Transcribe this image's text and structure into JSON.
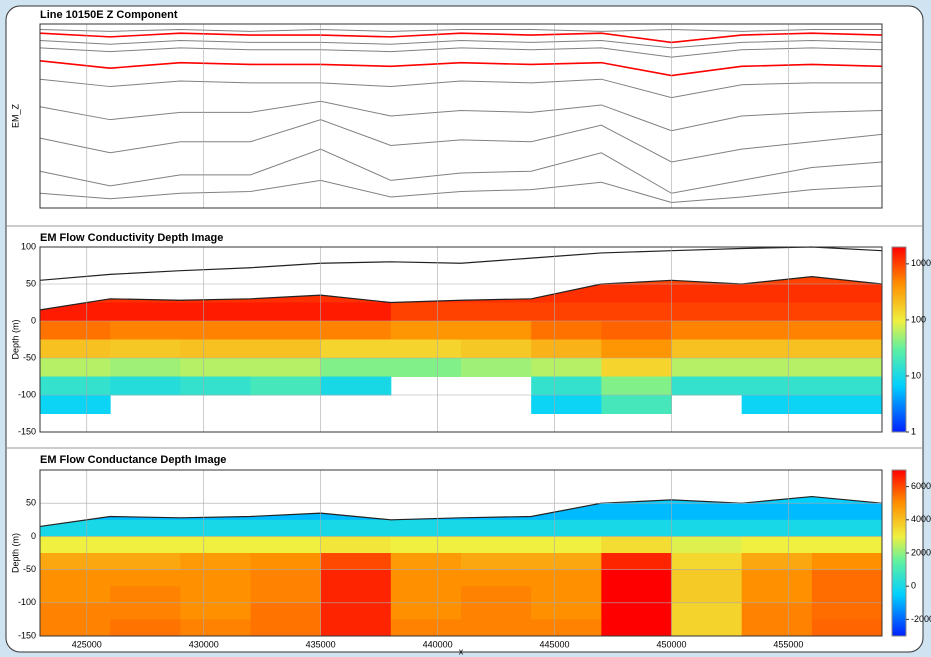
{
  "chart_data": [
    {
      "type": "line",
      "title": "Line 10150E   Z Component",
      "ylabel": "EM_Z",
      "x": [
        423000,
        426000,
        429000,
        432000,
        435000,
        438000,
        441000,
        444000,
        447000,
        450000,
        453000,
        456000,
        459000
      ],
      "xlim": [
        423000,
        459000
      ],
      "xticks": [
        425000,
        430000,
        435000,
        440000,
        445000,
        450000,
        455000
      ],
      "ylim": [
        0,
        100
      ],
      "grid": true,
      "series": [
        {
          "color": "#808080",
          "values": [
            97,
            96,
            97,
            96,
            97,
            96,
            97,
            97,
            96,
            97,
            96,
            97,
            97
          ]
        },
        {
          "color": "#ff0000",
          "values": [
            95,
            93,
            95,
            94,
            94,
            93,
            95,
            94,
            95,
            90,
            94,
            95,
            94
          ]
        },
        {
          "color": "#808080",
          "values": [
            91,
            89,
            91,
            90,
            90,
            89,
            91,
            90,
            91,
            87,
            90,
            91,
            90
          ]
        },
        {
          "color": "#808080",
          "values": [
            87,
            85,
            87,
            86,
            86,
            85,
            87,
            86,
            87,
            82,
            86,
            87,
            86
          ]
        },
        {
          "color": "#ff0000",
          "values": [
            80,
            76,
            79,
            78,
            78,
            77,
            79,
            78,
            79,
            72,
            77,
            78,
            77
          ]
        },
        {
          "color": "#808080",
          "values": [
            70,
            66,
            69,
            68,
            68,
            66,
            69,
            68,
            70,
            60,
            67,
            68,
            68
          ]
        },
        {
          "color": "#808080",
          "values": [
            55,
            48,
            52,
            52,
            58,
            50,
            53,
            52,
            56,
            42,
            50,
            52,
            53
          ]
        },
        {
          "color": "#808080",
          "values": [
            38,
            30,
            36,
            36,
            48,
            34,
            37,
            36,
            45,
            25,
            32,
            36,
            40
          ]
        },
        {
          "color": "#808080",
          "values": [
            20,
            12,
            18,
            18,
            32,
            15,
            19,
            20,
            30,
            8,
            15,
            22,
            25
          ]
        },
        {
          "color": "#808080",
          "values": [
            8,
            5,
            8,
            9,
            15,
            6,
            9,
            10,
            14,
            3,
            6,
            10,
            12
          ]
        }
      ]
    },
    {
      "type": "heatmap",
      "title": "EM Flow Conductivity Depth Image",
      "ylabel": "Depth (m)",
      "xbins": [
        423000,
        426000,
        429000,
        432000,
        435000,
        438000,
        441000,
        444000,
        447000,
        450000,
        453000,
        456000,
        459000
      ],
      "ybins": [
        75,
        50,
        25,
        0,
        -25,
        -50,
        -75,
        -100,
        -125,
        -150
      ],
      "xlim": [
        423000,
        459000
      ],
      "xticks": [
        425000,
        430000,
        435000,
        440000,
        445000,
        450000,
        455000
      ],
      "ylim": [
        -150,
        100
      ],
      "yticks": [
        -150,
        -100,
        -50,
        0,
        50,
        100
      ],
      "grid": true,
      "surface": [
        15,
        30,
        28,
        30,
        35,
        25,
        28,
        30,
        50,
        55,
        50,
        60,
        50
      ],
      "flight_line": [
        55,
        63,
        68,
        72,
        78,
        80,
        78,
        85,
        92,
        95,
        98,
        100,
        95
      ],
      "values": [
        [
          null,
          null,
          null,
          null,
          null,
          null,
          null,
          null,
          1000,
          1000,
          1000,
          1000
        ],
        [
          1200,
          1200,
          1200,
          1200,
          1200,
          1200,
          1200,
          1200,
          1200,
          1200,
          1200,
          1200
        ],
        [
          1500,
          1500,
          1500,
          1500,
          1500,
          1000,
          1000,
          1000,
          1000,
          1000,
          1000,
          1000
        ],
        [
          600,
          500,
          500,
          500,
          500,
          400,
          400,
          600,
          700,
          500,
          500,
          500
        ],
        [
          200,
          180,
          200,
          200,
          150,
          150,
          180,
          250,
          400,
          200,
          200,
          200
        ],
        [
          60,
          50,
          60,
          60,
          40,
          40,
          50,
          60,
          150,
          60,
          60,
          60
        ],
        [
          15,
          12,
          15,
          20,
          10,
          null,
          null,
          15,
          40,
          15,
          15,
          15
        ],
        [
          8,
          null,
          null,
          null,
          null,
          null,
          null,
          8,
          20,
          null,
          8,
          8
        ],
        [
          null,
          null,
          null,
          null,
          null,
          null,
          null,
          null,
          null,
          null,
          null,
          null
        ]
      ],
      "color_scale": "log",
      "clim": [
        1,
        2000
      ],
      "cticks": [
        1,
        10,
        100,
        1000
      ]
    },
    {
      "type": "heatmap",
      "title": "EM Flow Conductance Depth Image",
      "ylabel": "Depth (m)",
      "xlabel": "x",
      "xbins": [
        423000,
        426000,
        429000,
        432000,
        435000,
        438000,
        441000,
        444000,
        447000,
        450000,
        453000,
        456000,
        459000
      ],
      "ybins": [
        75,
        50,
        25,
        0,
        -25,
        -50,
        -75,
        -100,
        -125,
        -150
      ],
      "xlim": [
        423000,
        459000
      ],
      "xticks": [
        425000,
        430000,
        435000,
        440000,
        445000,
        450000,
        455000
      ],
      "ylim": [
        -150,
        100
      ],
      "yticks": [
        -150,
        -100,
        -50,
        0,
        50
      ],
      "grid": true,
      "surface": [
        15,
        30,
        28,
        30,
        35,
        25,
        28,
        30,
        50,
        55,
        50,
        60,
        50
      ],
      "values": [
        [
          null,
          null,
          null,
          null,
          null,
          null,
          null,
          null,
          -500,
          -500,
          -500,
          -500
        ],
        [
          -800,
          -800,
          -800,
          -800,
          -800,
          -800,
          -800,
          -800,
          -800,
          -800,
          -800,
          -800
        ],
        [
          0,
          0,
          0,
          0,
          0,
          0,
          0,
          0,
          0,
          0,
          0,
          0
        ],
        [
          3000,
          3000,
          3000,
          3000,
          3200,
          3000,
          3000,
          3000,
          3400,
          2800,
          3000,
          3000
        ],
        [
          4500,
          4500,
          4800,
          5000,
          6000,
          4800,
          4500,
          4500,
          6500,
          3500,
          4500,
          5000
        ],
        [
          5000,
          5000,
          5000,
          5200,
          6500,
          5000,
          5000,
          5000,
          7000,
          3800,
          5000,
          5500
        ],
        [
          5000,
          5200,
          5000,
          5200,
          6500,
          5000,
          5200,
          5000,
          7000,
          3800,
          5000,
          5500
        ],
        [
          5200,
          5200,
          5000,
          5400,
          6500,
          5000,
          5200,
          5000,
          7000,
          3600,
          5200,
          5500
        ],
        [
          5200,
          5400,
          5200,
          5400,
          6500,
          5200,
          5200,
          5200,
          7000,
          3600,
          5200,
          5600
        ]
      ],
      "color_scale": "linear",
      "clim": [
        -3000,
        7000
      ],
      "cticks": [
        -2000,
        0,
        2000,
        4000,
        6000
      ]
    }
  ]
}
